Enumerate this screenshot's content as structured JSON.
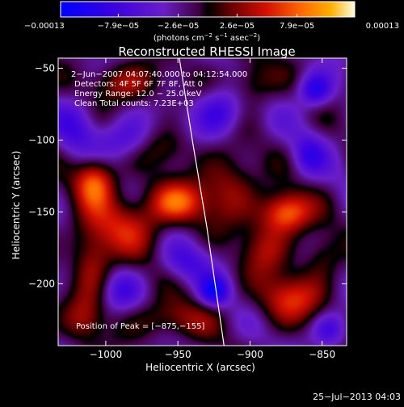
{
  "chart_data": {
    "type": "heatmap",
    "title": "Reconstructed RHESSI Image",
    "xlabel": "Heliocentric X (arcsec)",
    "ylabel": "Heliocentric Y (arcsec)",
    "xlim": [
      -1033,
      -833
    ],
    "ylim": [
      -243,
      -43
    ],
    "xticks": [
      -1000,
      -950,
      -900,
      -850
    ],
    "xtick_labels": [
      "−1000",
      "−950",
      "−900",
      "−850"
    ],
    "yticks": [
      -200,
      -150,
      -100,
      -50
    ],
    "ytick_labels": [
      "−200",
      "−150",
      "−100",
      "−50"
    ],
    "colorbar": {
      "min": -0.00013,
      "max": 0.00013,
      "tick_values": [
        -0.00013,
        -7.9e-05,
        -2.6e-05,
        2.6e-05,
        7.9e-05,
        0.00013
      ],
      "tick_labels": [
        "−0.00013",
        "−7.9e−05",
        "−2.6e−05",
        "2.6e−05",
        "7.9e−05",
        "0.00013"
      ],
      "units_text": "(photons cm",
      "units_exp1": "−2",
      "units_mid": " s",
      "units_exp2": "−1",
      "units_end": " asec",
      "units_exp3": "−2",
      "units_close": ")"
    },
    "annotations": [
      "2−Jun−2007 04:07:40.000 to 04:12:54.000",
      "Detectors: 4F 5F 6F 7F 8F, Att 0",
      "Energy Range: 12.0 − 25.0 keV",
      "Clean     Total counts: 7.23E+03"
    ],
    "peak_label": "Position of Peak = [−875,−155]",
    "peak": [
      -875,
      -155
    ],
    "limb_curve": [
      [
        -949,
        -43
      ],
      [
        -940,
        -100
      ],
      [
        -930,
        -160
      ],
      [
        -918,
        -243
      ]
    ],
    "sources": [
      {
        "x": -875,
        "y": -150,
        "amp": 1.0,
        "sx": 12,
        "sy": 10
      },
      {
        "x": -1008,
        "y": -128,
        "amp": 0.9,
        "sx": 10,
        "sy": 12
      },
      {
        "x": -950,
        "y": -143,
        "amp": 0.75,
        "sx": 14,
        "sy": 10
      },
      {
        "x": -985,
        "y": -158,
        "amp": 0.6,
        "sx": 20,
        "sy": 16
      },
      {
        "x": -872,
        "y": -210,
        "amp": 0.7,
        "sx": 16,
        "sy": 12
      },
      {
        "x": -915,
        "y": -132,
        "amp": 0.55,
        "sx": 14,
        "sy": 18
      },
      {
        "x": -985,
        "y": -60,
        "amp": 0.55,
        "sx": 18,
        "sy": 10
      },
      {
        "x": -900,
        "y": -60,
        "amp": 0.5,
        "sx": 12,
        "sy": 12
      },
      {
        "x": -1010,
        "y": -185,
        "amp": 0.55,
        "sx": 10,
        "sy": 18
      },
      {
        "x": -955,
        "y": -225,
        "amp": 0.5,
        "sx": 20,
        "sy": 10
      },
      {
        "x": -1015,
        "y": -225,
        "amp": 0.45,
        "sx": 10,
        "sy": 12
      },
      {
        "x": -890,
        "y": -175,
        "amp": 0.5,
        "sx": 12,
        "sy": 14
      },
      {
        "x": -850,
        "y": -180,
        "amp": 0.4,
        "sx": 10,
        "sy": 12
      },
      {
        "x": -960,
        "y": -105,
        "amp": 0.4,
        "sx": 14,
        "sy": 10
      },
      {
        "x": -920,
        "y": -80,
        "amp": -0.6,
        "sx": 12,
        "sy": 12
      },
      {
        "x": -855,
        "y": -65,
        "amp": -0.7,
        "sx": 8,
        "sy": 8
      },
      {
        "x": -925,
        "y": -205,
        "amp": -0.75,
        "sx": 7,
        "sy": 7
      },
      {
        "x": -985,
        "y": -100,
        "amp": -0.5,
        "sx": 14,
        "sy": 10
      },
      {
        "x": -1020,
        "y": -90,
        "amp": -0.4,
        "sx": 10,
        "sy": 14
      },
      {
        "x": -860,
        "y": -110,
        "amp": -0.45,
        "sx": 8,
        "sy": 10
      },
      {
        "x": -945,
        "y": -185,
        "amp": -0.4,
        "sx": 12,
        "sy": 10
      },
      {
        "x": -845,
        "y": -232,
        "amp": -0.5,
        "sx": 8,
        "sy": 8
      },
      {
        "x": -990,
        "y": -205,
        "amp": -0.35,
        "sx": 10,
        "sy": 10
      }
    ]
  },
  "footer": {
    "date": "25−Jul−2013 04:03"
  }
}
